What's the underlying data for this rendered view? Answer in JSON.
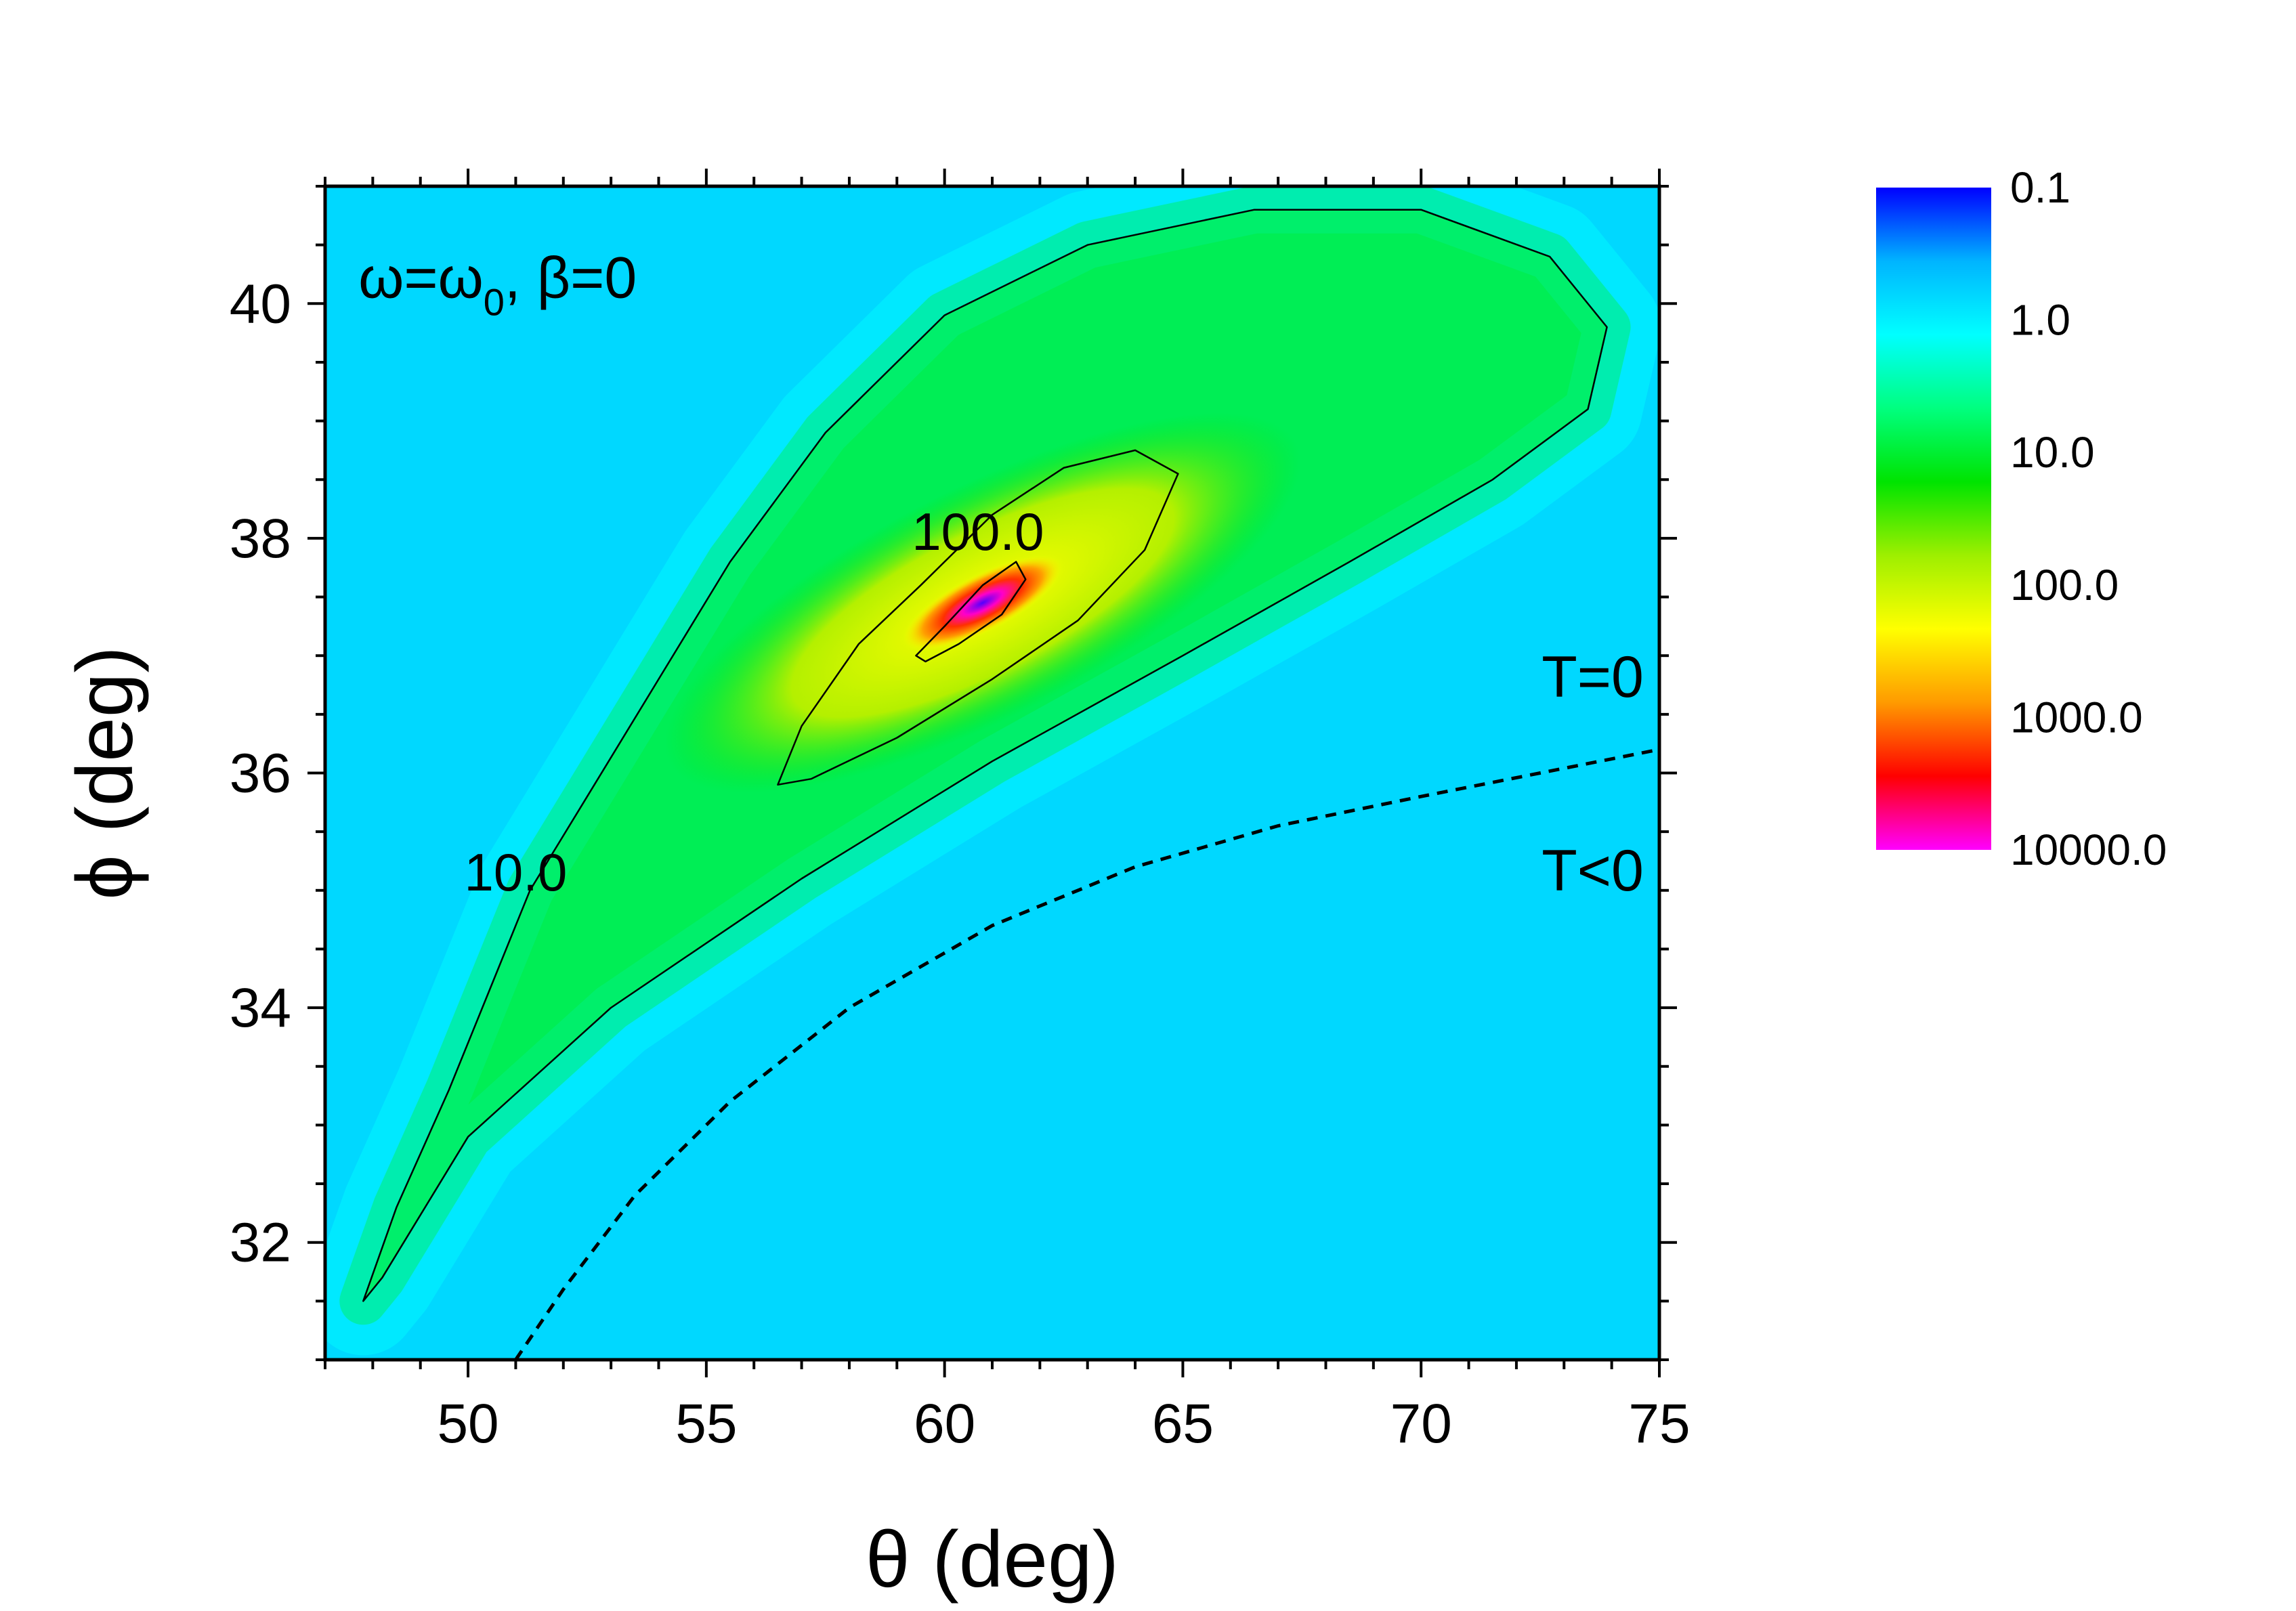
{
  "chart_data": {
    "type": "heatmap",
    "title": "",
    "xlabel": "θ (deg)",
    "ylabel": "ϕ (deg)",
    "xlim": [
      47,
      75
    ],
    "ylim": [
      31,
      41
    ],
    "x_ticks": [
      "50",
      "55",
      "60",
      "65",
      "70",
      "75"
    ],
    "y_ticks": [
      "32",
      "34",
      "36",
      "38",
      "40"
    ],
    "x_ticks_values": [
      50,
      55,
      60,
      65,
      70,
      75
    ],
    "y_ticks_values": [
      32,
      34,
      36,
      38,
      40
    ],
    "x_minor_step": 1,
    "y_minor_step": 0.5,
    "colorscale": {
      "scale": "log",
      "range": [
        0.1,
        10000
      ],
      "tick_labels": [
        "0.1",
        "1.0",
        "10.0",
        "100.0",
        "1000.0",
        "10000.0"
      ],
      "colors": [
        "#0000ff",
        "#00b4ff",
        "#00ffff",
        "#00ff7f",
        "#00e400",
        "#9eef00",
        "#ffff00",
        "#ff9a00",
        "#ff0000",
        "#ff00ff"
      ]
    },
    "background_color": "#00d8ff",
    "peak": {
      "x": 60.8,
      "y": 37.45
    },
    "contours": [
      {
        "label": "10.0",
        "label_pos": {
          "x": 51.0,
          "y": 35.0
        },
        "points": [
          [
            47.8,
            31.5
          ],
          [
            48.5,
            32.3
          ],
          [
            49.6,
            33.3
          ],
          [
            50.6,
            34.3
          ],
          [
            51.3,
            35.0
          ],
          [
            52.5,
            35.8
          ],
          [
            54.0,
            36.8
          ],
          [
            55.5,
            37.8
          ],
          [
            57.5,
            38.9
          ],
          [
            60.0,
            39.9
          ],
          [
            63.0,
            40.5
          ],
          [
            66.5,
            40.8
          ],
          [
            70.0,
            40.8
          ],
          [
            72.7,
            40.4
          ],
          [
            73.9,
            39.8
          ],
          [
            73.5,
            39.1
          ],
          [
            71.5,
            38.5
          ],
          [
            68.5,
            37.8
          ],
          [
            65.0,
            37.0
          ],
          [
            61.0,
            36.1
          ],
          [
            57.0,
            35.1
          ],
          [
            53.0,
            34.0
          ],
          [
            50.0,
            32.9
          ],
          [
            48.2,
            31.7
          ]
        ],
        "closed": true
      },
      {
        "label": "100.0",
        "label_pos": {
          "x": 60.7,
          "y": 37.9
        },
        "points": [
          [
            56.5,
            35.9
          ],
          [
            57.0,
            36.4
          ],
          [
            58.2,
            37.1
          ],
          [
            59.5,
            37.6
          ],
          [
            61.0,
            38.2
          ],
          [
            62.5,
            38.6
          ],
          [
            64.0,
            38.75
          ],
          [
            64.9,
            38.55
          ],
          [
            64.2,
            37.9
          ],
          [
            62.8,
            37.3
          ],
          [
            61.0,
            36.8
          ],
          [
            59.0,
            36.3
          ],
          [
            57.2,
            35.95
          ]
        ],
        "closed": true
      },
      {
        "label": "",
        "points": [
          [
            59.4,
            37.0
          ],
          [
            60.0,
            37.25
          ],
          [
            60.8,
            37.6
          ],
          [
            61.5,
            37.8
          ],
          [
            61.7,
            37.65
          ],
          [
            61.2,
            37.35
          ],
          [
            60.3,
            37.1
          ],
          [
            59.6,
            36.95
          ]
        ],
        "closed": true
      }
    ],
    "dashed_boundary": {
      "points": [
        [
          51.0,
          31.0
        ],
        [
          52.0,
          31.6
        ],
        [
          53.5,
          32.4
        ],
        [
          55.5,
          33.2
        ],
        [
          58.0,
          34.0
        ],
        [
          61.0,
          34.7
        ],
        [
          64.0,
          35.2
        ],
        [
          67.0,
          35.55
        ],
        [
          70.0,
          35.8
        ],
        [
          72.5,
          36.0
        ],
        [
          75.0,
          36.2
        ]
      ]
    },
    "annotations": [
      {
        "key": "omega",
        "text_parts": [
          "ω=ω",
          "0",
          ", β=0"
        ],
        "x": 47.7,
        "y": 40.05
      },
      {
        "key": "t_zero",
        "text": "T=0",
        "x": 73.6,
        "y": 36.65
      },
      {
        "key": "t_neg",
        "text": "T<0",
        "x": 73.6,
        "y": 35.0
      }
    ]
  }
}
